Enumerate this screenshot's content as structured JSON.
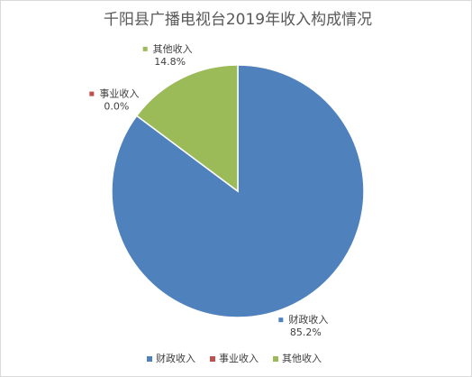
{
  "chart_data": {
    "type": "pie",
    "title": "千阳县广播电视台2019年收入构成情况",
    "categories": [
      "财政收入",
      "事业收入",
      "其他收入"
    ],
    "values": [
      85.2,
      0.0,
      14.8
    ],
    "value_labels": [
      "85.2%",
      "0.0%",
      "14.8%"
    ],
    "colors": [
      "#4f81bd",
      "#c0504d",
      "#9bbb59"
    ],
    "legend": "bottom"
  }
}
